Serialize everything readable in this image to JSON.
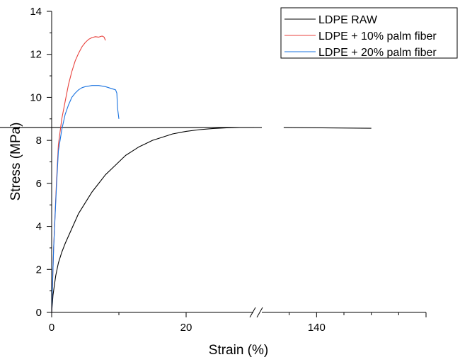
{
  "chart_data": {
    "type": "line",
    "xlabel": "Strain (%)",
    "ylabel": "Stress (MPa)",
    "grid": false,
    "legend_position": "top-right",
    "axis_break": true,
    "xlim": [
      0,
      160
    ],
    "ylim": [
      0,
      14
    ],
    "x_ticks": [
      {
        "value": 0,
        "label": "0"
      },
      {
        "value": 20,
        "label": "20"
      },
      {
        "value": 140,
        "label": "140"
      }
    ],
    "y_ticks": [
      {
        "value": 0,
        "label": "0"
      },
      {
        "value": 2,
        "label": "2"
      },
      {
        "value": 4,
        "label": "4"
      },
      {
        "value": 6,
        "label": "6"
      },
      {
        "value": 8,
        "label": "8"
      },
      {
        "value": 10,
        "label": "10"
      },
      {
        "value": 12,
        "label": "12"
      },
      {
        "value": 14,
        "label": "14"
      }
    ],
    "series": [
      {
        "name": "LDPE RAW",
        "color": "#000000",
        "x": [
          0,
          0.2,
          0.6,
          1,
          1.5,
          2,
          3,
          4,
          5,
          6,
          7,
          8,
          9,
          10,
          11,
          12,
          13,
          14,
          15,
          16,
          18,
          20,
          22,
          24,
          26,
          28,
          30,
          33
        ],
        "y": [
          0,
          0.8,
          1.7,
          2.3,
          2.8,
          3.2,
          3.9,
          4.6,
          5.1,
          5.6,
          6.0,
          6.4,
          6.7,
          7.0,
          7.3,
          7.5,
          7.7,
          7.85,
          8.0,
          8.1,
          8.3,
          8.42,
          8.5,
          8.55,
          8.58,
          8.6,
          8.6,
          8.6
        ],
        "segments": [
          {
            "x": [
              30,
              130
            ],
            "y": [
              8.6,
              8.6
            ]
          },
          {
            "x": [
              134,
              150
            ],
            "y": [
              8.6,
              8.56
            ]
          }
        ]
      },
      {
        "name": "LDPE + 10% palm fiber",
        "color": "#e8413c",
        "x": [
          0,
          0.3,
          0.7,
          1,
          1.5,
          2,
          2.5,
          3,
          3.5,
          4,
          4.5,
          5,
          5.5,
          6,
          6.5,
          7,
          7.5,
          7.8,
          8
        ],
        "y": [
          0,
          3.0,
          6.0,
          7.8,
          9.0,
          9.8,
          10.6,
          11.2,
          11.7,
          12.05,
          12.35,
          12.55,
          12.7,
          12.78,
          12.82,
          12.8,
          12.85,
          12.8,
          12.65
        ]
      },
      {
        "name": "LDPE + 20% palm fiber",
        "color": "#1a73e0",
        "x": [
          0,
          0.3,
          0.7,
          1,
          1.5,
          2,
          2.5,
          3,
          3.5,
          4,
          4.5,
          5,
          6,
          7,
          8,
          9,
          9.5,
          9.7,
          9.8,
          10
        ],
        "y": [
          0,
          3.0,
          5.8,
          7.5,
          8.5,
          9.2,
          9.65,
          10.0,
          10.2,
          10.35,
          10.45,
          10.5,
          10.55,
          10.55,
          10.5,
          10.4,
          10.35,
          10.2,
          9.5,
          9.0
        ]
      }
    ]
  }
}
